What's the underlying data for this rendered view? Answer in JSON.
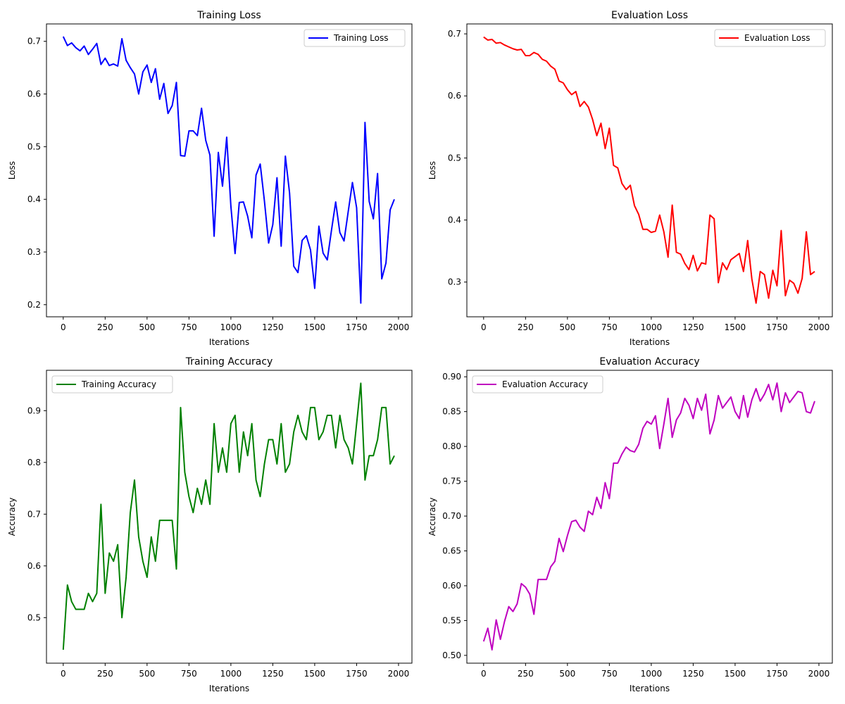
{
  "chart_data": [
    {
      "type": "line",
      "title": "Training Loss",
      "xlabel": "Iterations",
      "ylabel": "Loss",
      "xlim": [
        -100,
        2080
      ],
      "ylim": [
        0.177,
        0.733
      ],
      "xticks": [
        0,
        250,
        500,
        750,
        1000,
        1250,
        1500,
        1750,
        2000
      ],
      "yticks": [
        0.2,
        0.3,
        0.4,
        0.5,
        0.6,
        0.7
      ],
      "ytick_labels": [
        "0.2",
        "0.3",
        "0.4",
        "0.5",
        "0.6",
        "0.7"
      ],
      "legend_position": "top-right",
      "grid": false,
      "series": [
        {
          "name": "Training Loss",
          "color": "#0000ff",
          "x": [
            0,
            25,
            50,
            75,
            100,
            125,
            150,
            175,
            200,
            225,
            250,
            275,
            300,
            325,
            350,
            375,
            400,
            425,
            450,
            475,
            500,
            525,
            550,
            575,
            600,
            625,
            650,
            675,
            700,
            725,
            750,
            775,
            800,
            825,
            850,
            875,
            900,
            925,
            950,
            975,
            1000,
            1025,
            1050,
            1075,
            1100,
            1125,
            1150,
            1175,
            1200,
            1225,
            1250,
            1275,
            1300,
            1325,
            1350,
            1375,
            1400,
            1425,
            1450,
            1475,
            1500,
            1525,
            1550,
            1575,
            1600,
            1625,
            1650,
            1675,
            1700,
            1725,
            1750,
            1775,
            1800,
            1825,
            1850,
            1875,
            1900,
            1925,
            1950,
            1975
          ],
          "values": [
            0.709,
            0.692,
            0.697,
            0.688,
            0.682,
            0.691,
            0.675,
            0.685,
            0.696,
            0.656,
            0.668,
            0.654,
            0.657,
            0.653,
            0.705,
            0.664,
            0.65,
            0.638,
            0.6,
            0.642,
            0.655,
            0.622,
            0.648,
            0.59,
            0.62,
            0.563,
            0.578,
            0.622,
            0.483,
            0.482,
            0.53,
            0.53,
            0.521,
            0.573,
            0.512,
            0.484,
            0.33,
            0.489,
            0.425,
            0.518,
            0.387,
            0.297,
            0.394,
            0.395,
            0.368,
            0.327,
            0.446,
            0.467,
            0.397,
            0.317,
            0.352,
            0.441,
            0.311,
            0.482,
            0.412,
            0.273,
            0.261,
            0.322,
            0.331,
            0.304,
            0.231,
            0.349,
            0.298,
            0.285,
            0.341,
            0.395,
            0.337,
            0.321,
            0.377,
            0.432,
            0.384,
            0.203,
            0.546,
            0.396,
            0.363,
            0.449,
            0.249,
            0.279,
            0.38,
            0.4
          ]
        }
      ]
    },
    {
      "type": "line",
      "title": "Evaluation Loss",
      "xlabel": "Iterations",
      "ylabel": "Loss",
      "xlim": [
        -100,
        2080
      ],
      "ylim": [
        0.244,
        0.716
      ],
      "xticks": [
        0,
        250,
        500,
        750,
        1000,
        1250,
        1500,
        1750,
        2000
      ],
      "yticks": [
        0.3,
        0.4,
        0.5,
        0.6,
        0.7
      ],
      "ytick_labels": [
        "0.3",
        "0.4",
        "0.5",
        "0.6",
        "0.7"
      ],
      "legend_position": "top-right",
      "grid": false,
      "series": [
        {
          "name": "Evaluation Loss",
          "color": "#ff0000",
          "x": [
            0,
            25,
            50,
            75,
            100,
            125,
            150,
            175,
            200,
            225,
            250,
            275,
            300,
            325,
            350,
            375,
            400,
            425,
            450,
            475,
            500,
            525,
            550,
            575,
            600,
            625,
            650,
            675,
            700,
            725,
            750,
            775,
            800,
            825,
            850,
            875,
            900,
            925,
            950,
            975,
            1000,
            1025,
            1050,
            1075,
            1100,
            1125,
            1150,
            1175,
            1200,
            1225,
            1250,
            1275,
            1300,
            1325,
            1350,
            1375,
            1400,
            1425,
            1450,
            1475,
            1500,
            1525,
            1550,
            1575,
            1600,
            1625,
            1650,
            1675,
            1700,
            1725,
            1750,
            1775,
            1800,
            1825,
            1850,
            1875,
            1900,
            1925,
            1950,
            1975
          ],
          "values": [
            0.695,
            0.69,
            0.691,
            0.685,
            0.686,
            0.682,
            0.679,
            0.676,
            0.674,
            0.675,
            0.665,
            0.665,
            0.67,
            0.667,
            0.659,
            0.656,
            0.648,
            0.643,
            0.624,
            0.621,
            0.61,
            0.602,
            0.607,
            0.583,
            0.591,
            0.582,
            0.562,
            0.536,
            0.556,
            0.515,
            0.548,
            0.488,
            0.484,
            0.459,
            0.449,
            0.456,
            0.423,
            0.409,
            0.385,
            0.385,
            0.38,
            0.382,
            0.408,
            0.381,
            0.34,
            0.424,
            0.348,
            0.345,
            0.33,
            0.32,
            0.343,
            0.318,
            0.331,
            0.329,
            0.408,
            0.402,
            0.299,
            0.331,
            0.32,
            0.336,
            0.341,
            0.346,
            0.317,
            0.367,
            0.305,
            0.266,
            0.317,
            0.312,
            0.274,
            0.319,
            0.294,
            0.383,
            0.278,
            0.303,
            0.298,
            0.282,
            0.306,
            0.381,
            0.312,
            0.317
          ]
        }
      ]
    },
    {
      "type": "line",
      "title": "Training Accuracy",
      "xlabel": "Iterations",
      "ylabel": "Accuracy",
      "xlim": [
        -100,
        2080
      ],
      "ylim": [
        0.412,
        0.978
      ],
      "xticks": [
        0,
        250,
        500,
        750,
        1000,
        1250,
        1500,
        1750,
        2000
      ],
      "yticks": [
        0.5,
        0.6,
        0.7,
        0.8,
        0.9
      ],
      "ytick_labels": [
        "0.5",
        "0.6",
        "0.7",
        "0.8",
        "0.9"
      ],
      "legend_position": "top-left",
      "grid": false,
      "series": [
        {
          "name": "Training Accuracy",
          "color": "#008000",
          "x": [
            0,
            25,
            50,
            75,
            100,
            125,
            150,
            175,
            200,
            225,
            250,
            275,
            300,
            325,
            350,
            375,
            400,
            425,
            450,
            475,
            500,
            525,
            550,
            575,
            600,
            625,
            650,
            675,
            700,
            725,
            750,
            775,
            800,
            825,
            850,
            875,
            900,
            925,
            950,
            975,
            1000,
            1025,
            1050,
            1075,
            1100,
            1125,
            1150,
            1175,
            1200,
            1225,
            1250,
            1275,
            1300,
            1325,
            1350,
            1375,
            1400,
            1425,
            1450,
            1475,
            1500,
            1525,
            1550,
            1575,
            1600,
            1625,
            1650,
            1675,
            1700,
            1725,
            1750,
            1775,
            1800,
            1825,
            1850,
            1875,
            1900,
            1925,
            1950,
            1975
          ],
          "values": [
            0.438,
            0.563,
            0.531,
            0.516,
            0.516,
            0.516,
            0.547,
            0.531,
            0.547,
            0.719,
            0.547,
            0.625,
            0.609,
            0.641,
            0.5,
            0.578,
            0.703,
            0.766,
            0.656,
            0.609,
            0.578,
            0.656,
            0.609,
            0.688,
            0.688,
            0.688,
            0.688,
            0.594,
            0.906,
            0.781,
            0.734,
            0.703,
            0.75,
            0.719,
            0.766,
            0.719,
            0.875,
            0.781,
            0.828,
            0.781,
            0.875,
            0.891,
            0.781,
            0.859,
            0.813,
            0.875,
            0.766,
            0.734,
            0.797,
            0.844,
            0.844,
            0.797,
            0.875,
            0.781,
            0.797,
            0.859,
            0.891,
            0.859,
            0.844,
            0.906,
            0.906,
            0.844,
            0.859,
            0.891,
            0.891,
            0.828,
            0.891,
            0.844,
            0.828,
            0.797,
            0.875,
            0.953,
            0.766,
            0.813,
            0.813,
            0.844,
            0.906,
            0.906,
            0.797,
            0.813
          ]
        }
      ]
    },
    {
      "type": "line",
      "title": "Evaluation Accuracy",
      "xlabel": "Iterations",
      "ylabel": "Accuracy",
      "xlim": [
        -100,
        2080
      ],
      "ylim": [
        0.4888,
        0.9093
      ],
      "xticks": [
        0,
        250,
        500,
        750,
        1000,
        1250,
        1500,
        1750,
        2000
      ],
      "yticks": [
        0.5,
        0.55,
        0.6,
        0.65,
        0.7,
        0.75,
        0.8,
        0.85,
        0.9
      ],
      "ytick_labels": [
        "0.50",
        "0.55",
        "0.60",
        "0.65",
        "0.70",
        "0.75",
        "0.80",
        "0.85",
        "0.90"
      ],
      "legend_position": "top-left",
      "grid": false,
      "series": [
        {
          "name": "Evaluation Accuracy",
          "color": "#bf00bf",
          "x": [
            0,
            25,
            50,
            75,
            100,
            125,
            150,
            175,
            200,
            225,
            250,
            275,
            300,
            325,
            350,
            375,
            400,
            425,
            450,
            475,
            500,
            525,
            550,
            575,
            600,
            625,
            650,
            675,
            700,
            725,
            750,
            775,
            800,
            825,
            850,
            875,
            900,
            925,
            950,
            975,
            1000,
            1025,
            1050,
            1075,
            1100,
            1125,
            1150,
            1175,
            1200,
            1225,
            1250,
            1275,
            1300,
            1325,
            1350,
            1375,
            1400,
            1425,
            1450,
            1475,
            1500,
            1525,
            1550,
            1575,
            1600,
            1625,
            1650,
            1675,
            1700,
            1725,
            1750,
            1775,
            1800,
            1825,
            1850,
            1875,
            1900,
            1925,
            1950,
            1975
          ],
          "values": [
            0.52,
            0.539,
            0.508,
            0.551,
            0.523,
            0.549,
            0.57,
            0.563,
            0.574,
            0.603,
            0.598,
            0.588,
            0.559,
            0.609,
            0.609,
            0.609,
            0.627,
            0.635,
            0.668,
            0.649,
            0.672,
            0.692,
            0.694,
            0.684,
            0.678,
            0.707,
            0.702,
            0.727,
            0.711,
            0.748,
            0.725,
            0.776,
            0.776,
            0.789,
            0.799,
            0.794,
            0.792,
            0.803,
            0.826,
            0.836,
            0.832,
            0.844,
            0.797,
            0.832,
            0.869,
            0.813,
            0.838,
            0.848,
            0.869,
            0.859,
            0.84,
            0.869,
            0.852,
            0.875,
            0.818,
            0.838,
            0.873,
            0.855,
            0.863,
            0.871,
            0.85,
            0.84,
            0.873,
            0.842,
            0.867,
            0.883,
            0.865,
            0.875,
            0.889,
            0.867,
            0.891,
            0.85,
            0.877,
            0.863,
            0.871,
            0.879,
            0.877,
            0.85,
            0.848,
            0.865
          ]
        }
      ]
    }
  ]
}
